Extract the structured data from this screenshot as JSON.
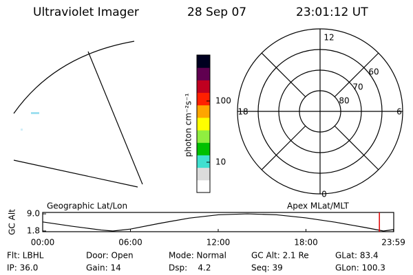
{
  "header": {
    "title": "Ultraviolet Imager",
    "date": "28 Sep 07",
    "time": "23:01:12 UT"
  },
  "colorbar": {
    "label": "photon cm⁻²s⁻¹",
    "scale": "log",
    "lim": [
      3.2,
      565
    ],
    "ticks": [
      10,
      100
    ],
    "colors": [
      "#ffffff",
      "#dcdcdc",
      "#40e0d0",
      "#00c000",
      "#90ee40",
      "#ffff00",
      "#ffa500",
      "#ff2000",
      "#c00020",
      "#600050",
      "#000020"
    ]
  },
  "polar": {
    "labels": [
      "12",
      "6",
      "0",
      "18",
      "60",
      "70",
      "80"
    ]
  },
  "orbit": {
    "left_label": "Geographic Lat/Lon",
    "right_label": "Apex MLat/MLT",
    "ylabel": "GC Alt",
    "x": [
      0,
      1,
      2,
      3,
      4,
      4.8,
      6,
      8,
      10,
      12,
      14,
      16,
      18,
      20,
      22,
      23.3,
      24
    ],
    "values": [
      5.6,
      4.7,
      3.8,
      3.0,
      2.2,
      1.8,
      2.6,
      5.0,
      7.2,
      8.6,
      9.0,
      8.6,
      7.3,
      5.5,
      3.3,
      1.8,
      2.4
    ],
    "xlim": [
      0,
      24
    ],
    "ylim": [
      1.5,
      9.6
    ],
    "xticks": [
      {
        "value": 0,
        "label": "00:00"
      },
      {
        "value": 6,
        "label": "06:00"
      },
      {
        "value": 12,
        "label": "12:00"
      },
      {
        "value": 18,
        "label": "18:00"
      },
      {
        "value": 23.98,
        "label": "23:59"
      }
    ],
    "yticks": [
      {
        "value": 9,
        "label": "9.0"
      },
      {
        "value": 1.8,
        "label": "1.8"
      }
    ],
    "marker": 23.02,
    "marker_color": "#e00000"
  },
  "status": [
    [
      "Flt: LBHL",
      "Door: Open",
      "Mode: Normal",
      "GC Alt: 2.1 Re",
      "GLat: 83.4"
    ],
    [
      "IP: 36.0",
      "Gain: 14",
      "Dsp:    4.2",
      "Seq: 39",
      "GLon: 100.3"
    ]
  ]
}
